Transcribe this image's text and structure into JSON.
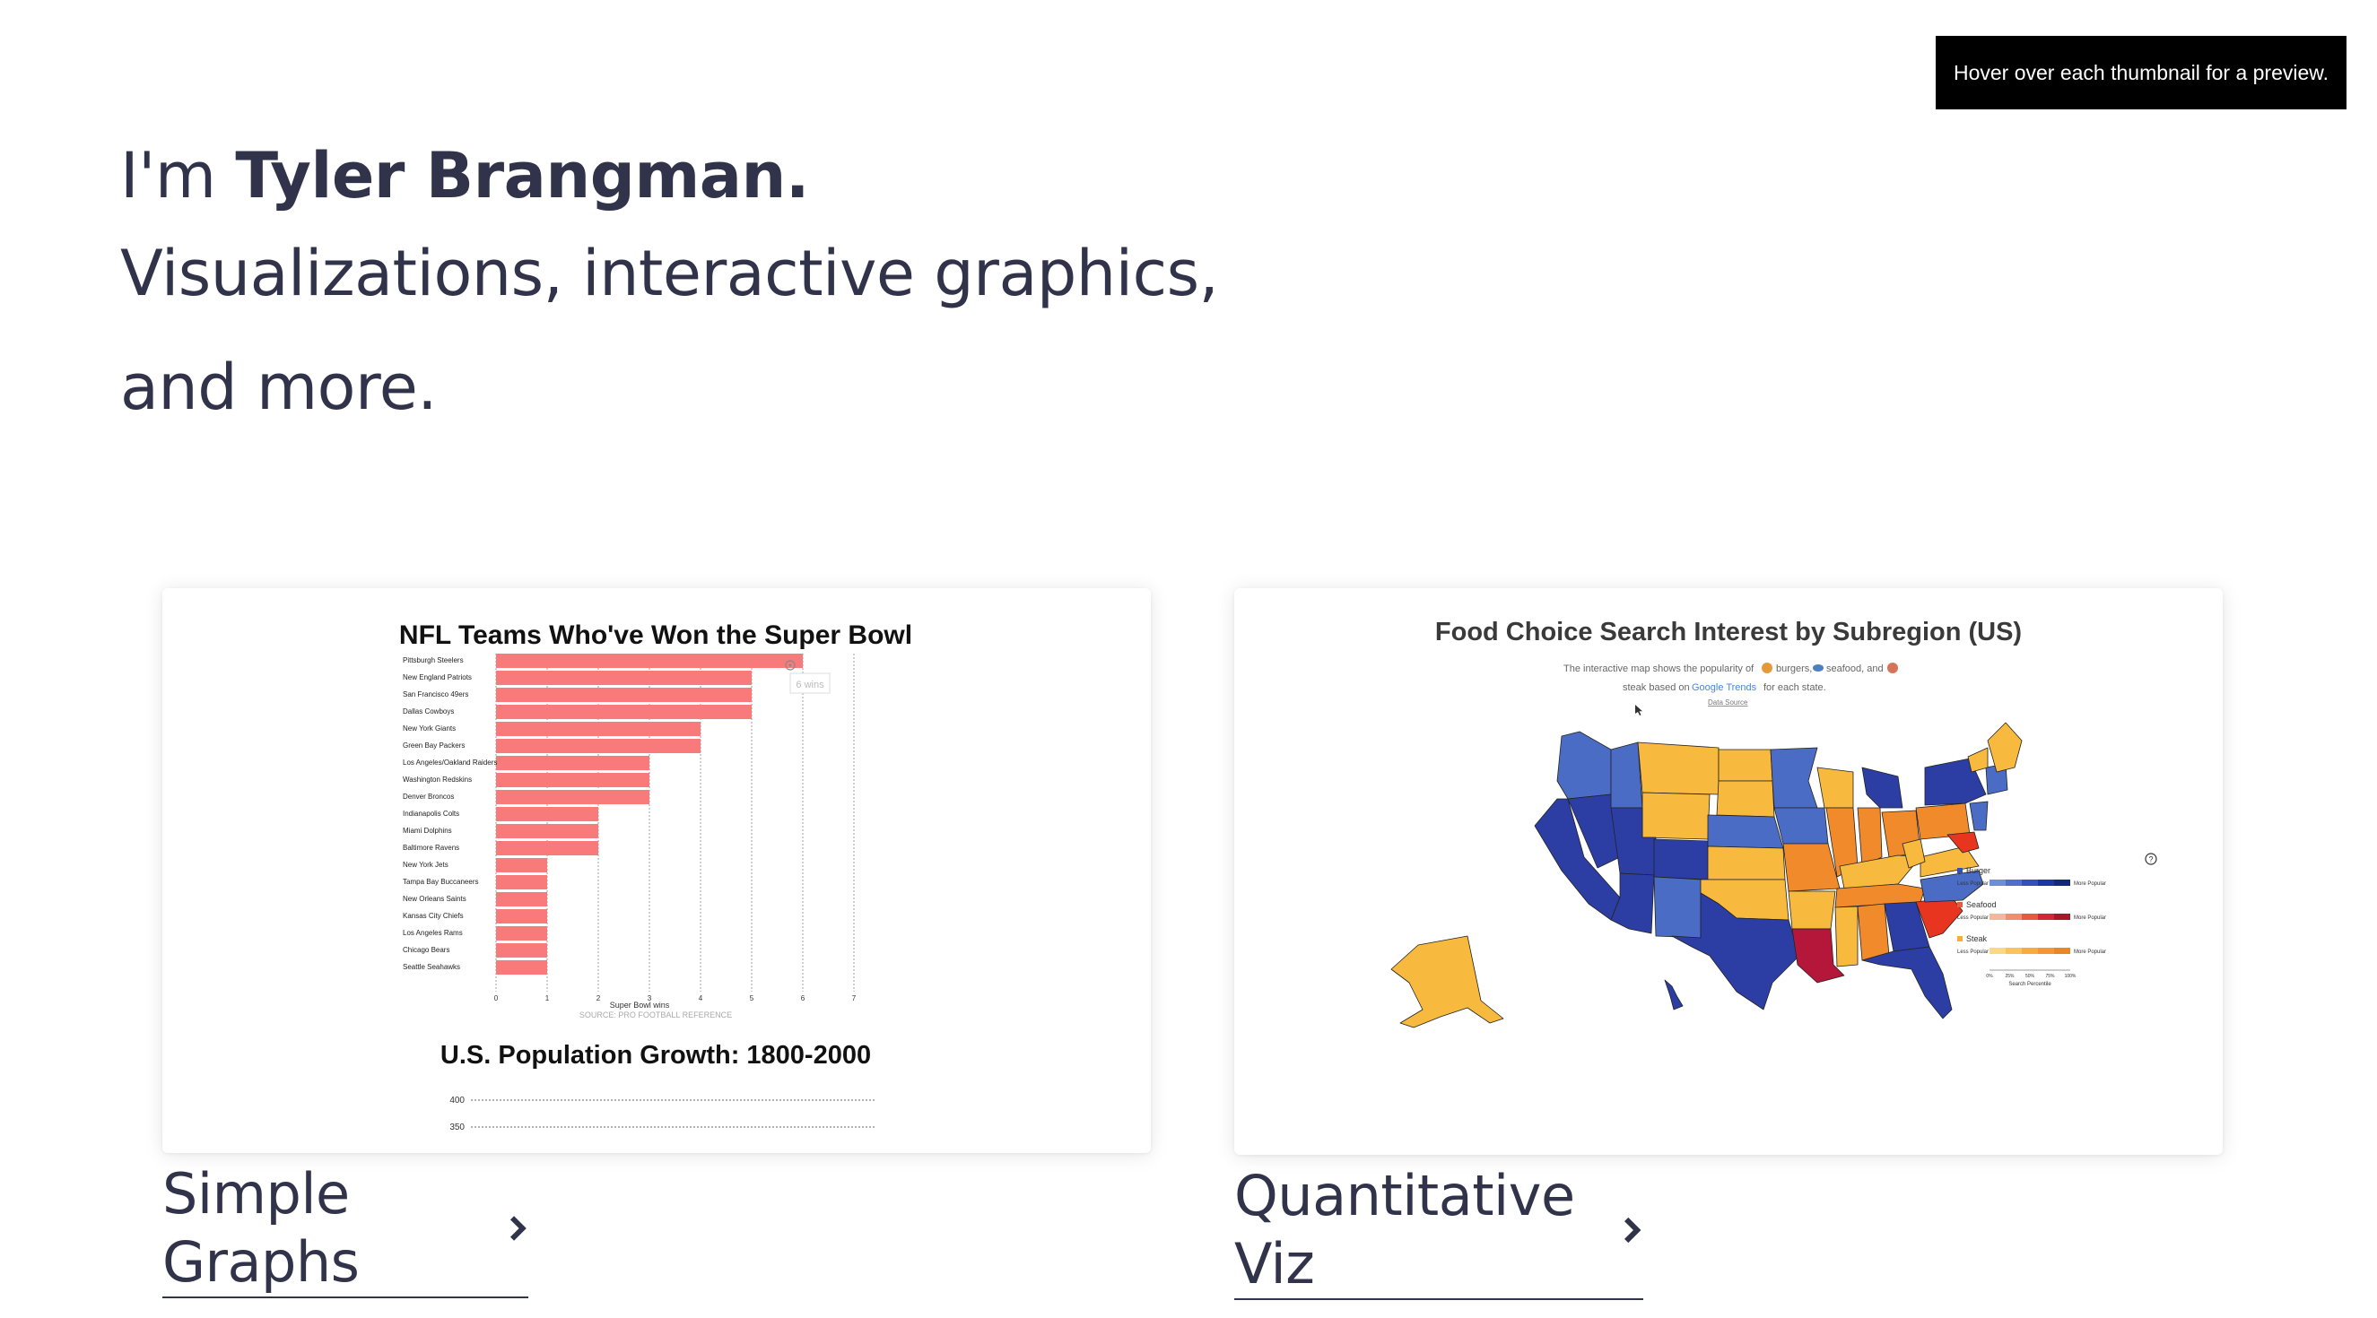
{
  "tooltip": {
    "text": "Hover over each thumbnail for a preview."
  },
  "intro": {
    "prefix": "I'm",
    "name": "Tyler Brangman.",
    "line2": "Visualizations, interactive graphics,",
    "line3": "and more."
  },
  "cards": [
    {
      "link_label": "Simple Graphs",
      "preview": {
        "title": "NFL Teams Who've Won the Super Bowl",
        "hover_label": "6 wins",
        "xlabel": "Super Bowl wins",
        "source": "SOURCE: PRO FOOTBALL REFERENCE",
        "second_title": "U.S. Population Growth: 1800-2000",
        "second_ticks": [
          "400",
          "350"
        ]
      }
    },
    {
      "link_label": "Quantitative Viz",
      "preview": {
        "title": "Food Choice Search Interest by Subregion (US)",
        "desc_line1a": "The interactive map shows the popularity of",
        "desc_line1b": "burgers,",
        "desc_line1c": "seafood, and",
        "desc_line2a": "steak based on",
        "desc_line2b": "Google Trends",
        "desc_line2c": "for each state.",
        "data_link": "Data Source",
        "legend": [
          {
            "label": "Burger",
            "low": "Less Popular",
            "high": "More Popular",
            "colors": [
              "#6d8fd8",
              "#4f6fcb",
              "#3350b8",
              "#1f35a0",
              "#14287a"
            ]
          },
          {
            "label": "Seafood",
            "low": "Less Popular",
            "high": "More Popular",
            "colors": [
              "#f5b79a",
              "#ef8f6b",
              "#e85a3f",
              "#d0283a",
              "#a8182d"
            ]
          },
          {
            "label": "Steak",
            "low": "Less Popular",
            "high": "More Popular",
            "colors": [
              "#fbd78a",
              "#f9c45b",
              "#f5ae3a",
              "#f19930",
              "#ec8524"
            ]
          }
        ],
        "legend_ticks": [
          "0%",
          "25%",
          "50%",
          "75%",
          "100%"
        ],
        "legend_axis": "Search Percentile",
        "help_icon": "?"
      }
    }
  ],
  "chart_data": {
    "type": "bar",
    "title": "NFL Teams Who've Won the Super Bowl",
    "xlabel": "Super Bowl wins",
    "xlim": [
      0,
      7
    ],
    "xticks": [
      0,
      1,
      2,
      3,
      4,
      5,
      6,
      7
    ],
    "categories": [
      "Pittsburgh Steelers",
      "New England Patriots",
      "San Francisco 49ers",
      "Dallas Cowboys",
      "New York Giants",
      "Green Bay Packers",
      "Los Angeles/Oakland Raiders",
      "Washington Redskins",
      "Denver Broncos",
      "Indianapolis Colts",
      "Miami Dolphins",
      "Baltimore Ravens",
      "New York Jets",
      "Tampa Bay Buccaneers",
      "New Orleans Saints",
      "Kansas City Chiefs",
      "Los Angeles Rams",
      "Chicago Bears",
      "Seattle Seahawks"
    ],
    "values": [
      6,
      5,
      5,
      5,
      4,
      4,
      3,
      3,
      3,
      2,
      2,
      2,
      1,
      1,
      1,
      1,
      1,
      1,
      1
    ],
    "bar_color": "#f97a7a"
  },
  "colors": {
    "text": "#31334a",
    "burger_dark": "#2c3ea3",
    "burger_mid": "#4a6cc4",
    "steak": "#f7b93e",
    "steak_orange": "#f08a2a",
    "seafood_dark": "#b5173a",
    "seafood_red": "#e8351f"
  }
}
